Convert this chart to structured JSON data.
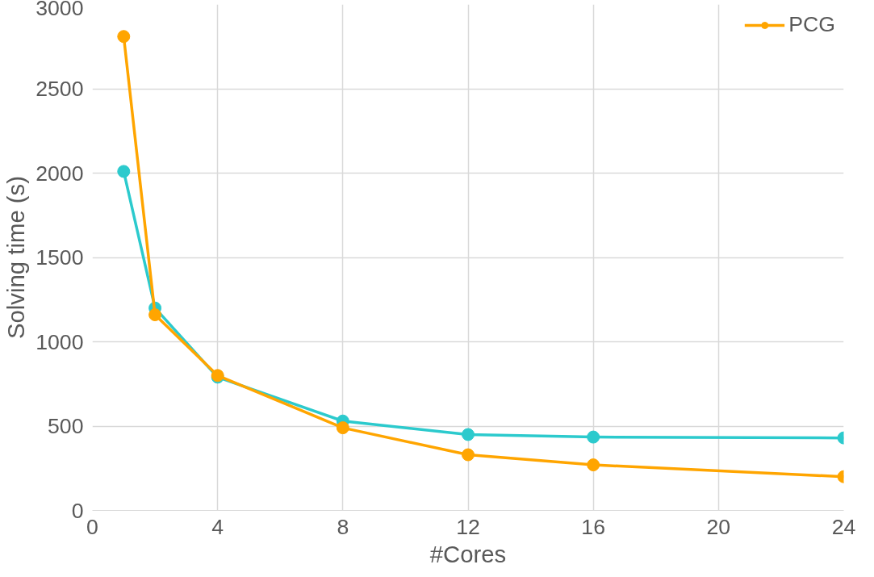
{
  "chart_data": {
    "type": "line",
    "xlabel": "#Cores",
    "ylabel": "Solving time (s)",
    "x": [
      1,
      2,
      4,
      8,
      12,
      16,
      24
    ],
    "series": [
      {
        "color": "#2ccacd",
        "values": [
          2010,
          1200,
          790,
          530,
          450,
          435,
          430
        ]
      },
      {
        "name": "PCG",
        "color": "#ffa500",
        "values": [
          2810,
          1160,
          800,
          490,
          330,
          270,
          200
        ]
      }
    ],
    "xlim": [
      0,
      24
    ],
    "xticks": [
      0,
      4,
      8,
      12,
      16,
      20,
      24
    ],
    "ylim": [
      0,
      3000
    ],
    "yticks": [
      0,
      500,
      1000,
      1500,
      2000,
      2500,
      3000
    ],
    "grid": true,
    "legend": "top right",
    "marker": "circle",
    "line_style": "solid"
  }
}
